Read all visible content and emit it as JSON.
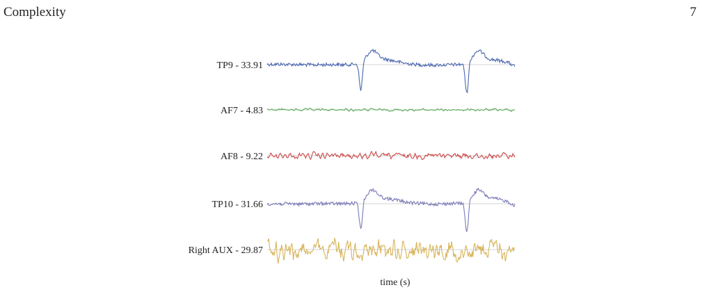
{
  "header": {
    "title": "Complexity",
    "page_number": "7"
  },
  "chart_data": {
    "type": "line",
    "title": "",
    "xlabel": "time (s)",
    "ylabel": "",
    "grid": false,
    "legend": "none",
    "series": [
      {
        "name": "TP9 - 33.91",
        "color": "#4a66b0",
        "signal": "blink",
        "amplitude": 33.91
      },
      {
        "name": "AF7 - 4.83",
        "color": "#5aaa5a",
        "signal": "noise",
        "amplitude": 4.83
      },
      {
        "name": "AF8 - 9.22",
        "color": "#cc4a4a",
        "signal": "noise",
        "amplitude": 9.22
      },
      {
        "name": "TP10 - 31.66",
        "color": "#7a7ab8",
        "signal": "blink",
        "amplitude": 31.66
      },
      {
        "name": "Right AUX - 29.87",
        "color": "#d8b45a",
        "signal": "noise",
        "amplitude": 29.87
      }
    ]
  }
}
